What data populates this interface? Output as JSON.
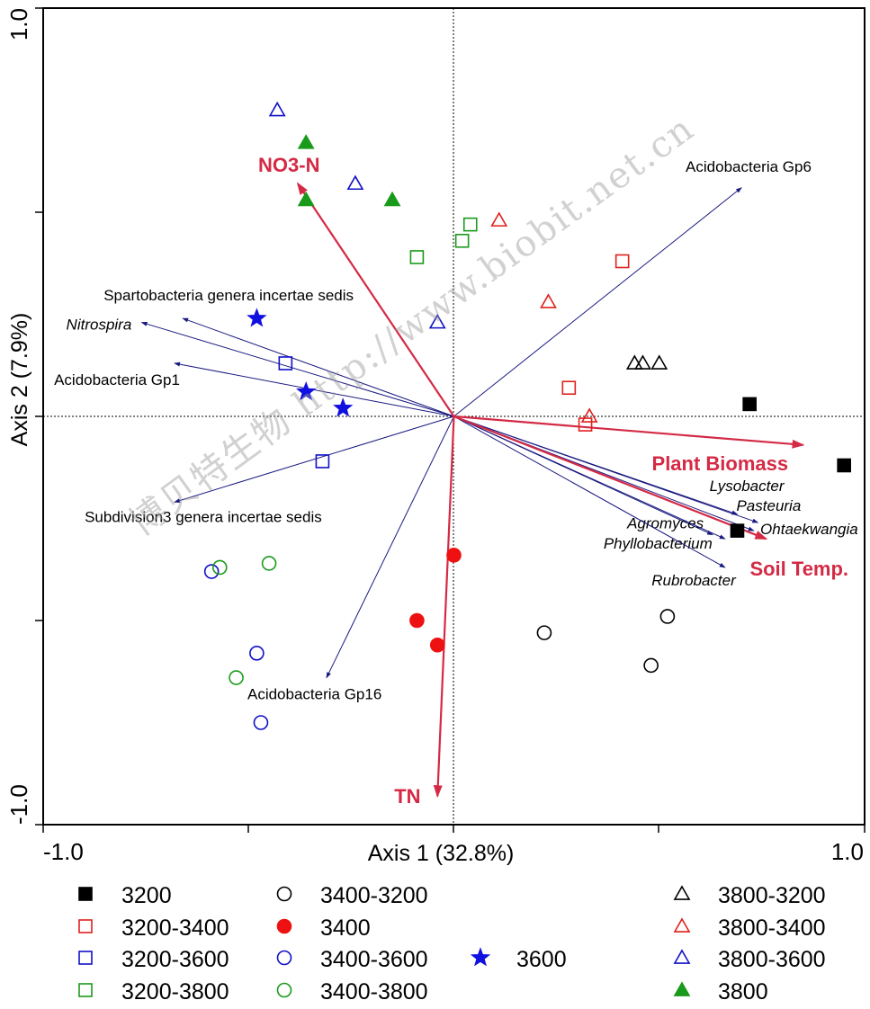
{
  "chart_data": {
    "type": "scatter",
    "subtype": "RDA biplot",
    "xlabel": "Axis 1 (32.8%)",
    "ylabel": "Axis 2 (7.9%)",
    "xlim": [
      -1.0,
      1.0
    ],
    "ylim": [
      -1.0,
      1.0
    ],
    "x_tick_labels": [
      "-1.0",
      "1.0"
    ],
    "y_tick_labels": [
      "1.0",
      "-1.0"
    ],
    "zero_lines": "dashed",
    "env_color": "#d42a45",
    "species_color": "#1a1a80",
    "env_vectors": [
      {
        "name": "NO3-N",
        "x": -0.38,
        "y": 0.57
      },
      {
        "name": "Plant Biomass",
        "x": 0.85,
        "y": -0.07
      },
      {
        "name": "Soil Temp.",
        "x": 0.76,
        "y": -0.3
      },
      {
        "name": "TN",
        "x": -0.04,
        "y": -0.93
      }
    ],
    "species_vectors": [
      {
        "name": "Acidobacteria Gp6",
        "x": 0.7,
        "y": 0.56,
        "italic": false
      },
      {
        "name": "Spartobacteria genera incertae sedis",
        "x": -0.66,
        "y": 0.24,
        "italic": false
      },
      {
        "name": "Nitrospira",
        "x": -0.76,
        "y": 0.23,
        "italic": true
      },
      {
        "name": "Acidobacteria Gp1",
        "x": -0.68,
        "y": 0.13,
        "italic": false
      },
      {
        "name": "Subdivision3 genera incertae sedis",
        "x": -0.68,
        "y": -0.21,
        "italic": false
      },
      {
        "name": "Acidobacteria Gp16",
        "x": -0.31,
        "y": -0.64,
        "italic": false
      },
      {
        "name": "Lysobacter",
        "x": 0.69,
        "y": -0.24,
        "italic": true
      },
      {
        "name": "Pasteuria",
        "x": 0.74,
        "y": -0.26,
        "italic": true
      },
      {
        "name": "Ohtaekwangia",
        "x": 0.73,
        "y": -0.28,
        "italic": true
      },
      {
        "name": "Agromyces",
        "x": 0.63,
        "y": -0.29,
        "italic": true
      },
      {
        "name": "Phyllobacterium",
        "x": 0.66,
        "y": -0.3,
        "italic": true
      },
      {
        "name": "Rubrobacter",
        "x": 0.66,
        "y": -0.37,
        "italic": true
      }
    ],
    "series": [
      {
        "name": "3200",
        "marker": "square",
        "fill": true,
        "color": "#000000",
        "points": [
          [
            0.72,
            0.03
          ],
          [
            0.95,
            -0.12
          ],
          [
            0.69,
            -0.28
          ]
        ]
      },
      {
        "name": "3200-3400",
        "marker": "square",
        "fill": false,
        "color": "#e0201c",
        "points": [
          [
            0.41,
            0.38
          ],
          [
            0.28,
            0.07
          ],
          [
            0.32,
            -0.02
          ]
        ]
      },
      {
        "name": "3200-3600",
        "marker": "square",
        "fill": false,
        "color": "#1010c8",
        "points": [
          [
            -0.41,
            0.13
          ],
          [
            -0.32,
            -0.11
          ]
        ]
      },
      {
        "name": "3200-3800",
        "marker": "square",
        "fill": false,
        "color": "#1a9a1a",
        "points": [
          [
            0.04,
            0.47
          ],
          [
            0.02,
            0.43
          ],
          [
            -0.09,
            0.39
          ]
        ]
      },
      {
        "name": "3400-3200",
        "marker": "circle",
        "fill": false,
        "color": "#000000",
        "points": [
          [
            0.22,
            -0.53
          ],
          [
            0.52,
            -0.49
          ],
          [
            0.48,
            -0.61
          ]
        ]
      },
      {
        "name": "3400",
        "marker": "circle",
        "fill": true,
        "color": "#ee1111",
        "points": [
          [
            0.0,
            -0.34
          ],
          [
            -0.09,
            -0.5
          ],
          [
            -0.04,
            -0.56
          ]
        ]
      },
      {
        "name": "3400-3600",
        "marker": "circle",
        "fill": false,
        "color": "#1010c8",
        "points": [
          [
            -0.59,
            -0.38
          ],
          [
            -0.48,
            -0.58
          ],
          [
            -0.47,
            -0.75
          ]
        ]
      },
      {
        "name": "3400-3800",
        "marker": "circle",
        "fill": false,
        "color": "#1a9a1a",
        "points": [
          [
            -0.57,
            -0.37
          ],
          [
            -0.45,
            -0.36
          ],
          [
            -0.53,
            -0.64
          ]
        ]
      },
      {
        "name": "3600",
        "marker": "star",
        "fill": true,
        "color": "#1010e0",
        "points": [
          [
            -0.48,
            0.24
          ],
          [
            -0.36,
            0.06
          ],
          [
            -0.27,
            0.02
          ]
        ]
      },
      {
        "name": "3800-3200",
        "marker": "triangle",
        "fill": false,
        "color": "#000000",
        "points": [
          [
            0.44,
            0.13
          ],
          [
            0.46,
            0.13
          ],
          [
            0.5,
            0.13
          ]
        ]
      },
      {
        "name": "3800-3400",
        "marker": "triangle",
        "fill": false,
        "color": "#e0201c",
        "points": [
          [
            0.11,
            0.48
          ],
          [
            0.23,
            0.28
          ],
          [
            0.33,
            0.0
          ]
        ]
      },
      {
        "name": "3800-3600",
        "marker": "triangle",
        "fill": false,
        "color": "#1010c8",
        "points": [
          [
            -0.43,
            0.75
          ],
          [
            -0.24,
            0.57
          ],
          [
            -0.04,
            0.23
          ]
        ]
      },
      {
        "name": "3800",
        "marker": "triangle",
        "fill": true,
        "color": "#1a9a1a",
        "points": [
          [
            -0.36,
            0.67
          ],
          [
            -0.36,
            0.53
          ],
          [
            -0.15,
            0.53
          ]
        ]
      }
    ],
    "legend_placement": "bottom"
  },
  "watermark": "博贝特生物 http://www.biobit.net.cn"
}
